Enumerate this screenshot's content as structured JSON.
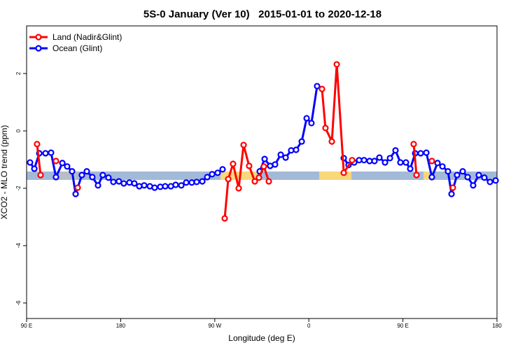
{
  "chart_data": {
    "type": "line",
    "title": "5S-0 January (Ver 10)   2015-01-01 to 2020-12-18",
    "x_label": "Longitude (deg E)",
    "y_label": "XCO2 - MLO trend (ppm)",
    "xlim": [
      90,
      540
    ],
    "ylim": [
      -6.54,
      3.66
    ],
    "xticks": [
      {
        "value": 90,
        "label": "90 E"
      },
      {
        "value": 180,
        "label": "180"
      },
      {
        "value": 270,
        "label": "90 W"
      },
      {
        "value": 360,
        "label": "0"
      },
      {
        "value": 450,
        "label": "90 E"
      },
      {
        "value": 540,
        "label": "180"
      }
    ],
    "yticks": [
      -6,
      -4,
      -2,
      0,
      2
    ],
    "legend": "top-left",
    "series": [
      {
        "name": "Ocean (Glint)",
        "color": "#0000ff",
        "x": [
          93.3,
          97.4,
          102.1,
          108.1,
          113.4,
          118.1,
          124.2,
          128.8,
          133.5,
          136.9,
          142.9,
          147.6,
          152.9,
          158.3,
          162.9,
          168.3,
          173.0,
          178.3,
          183.0,
          188.4,
          193.1,
          197.8,
          202.5,
          207.9,
          212.5,
          217.9,
          222.6,
          228.0,
          232.6,
          238.0,
          242.7,
          248.0,
          252.7,
          258.1,
          262.8,
          267.5,
          272.8,
          277.5,
          null,
          313.0,
          317.7,
          323.0,
          327.7,
          333.1,
          337.8,
          343.1,
          347.8,
          353.2,
          357.9,
          362.5,
          367.9,
          null,
          393.4,
          398.0,
          403.4,
          408.1,
          412.8,
          418.1,
          422.8,
          427.5,
          432.9,
          437.6,
          442.9,
          447.6,
          452.9,
          457.0,
          461.7,
          467.0,
          472.4,
          477.7,
          483.1,
          487.8,
          493.1,
          496.5,
          501.8,
          507.2,
          511.9,
          517.2,
          522.6,
          527.9,
          533.3,
          538.7
        ],
        "values": [
          -1.1,
          -1.32,
          -0.78,
          -0.78,
          -0.76,
          -1.61,
          -1.12,
          -1.24,
          -1.41,
          -2.2,
          -1.54,
          -1.41,
          -1.61,
          -1.9,
          -1.54,
          -1.63,
          -1.78,
          -1.76,
          -1.83,
          -1.8,
          -1.83,
          -1.93,
          -1.9,
          -1.93,
          -1.98,
          -1.95,
          -1.93,
          -1.93,
          -1.88,
          -1.9,
          -1.8,
          -1.8,
          -1.78,
          -1.76,
          -1.61,
          -1.51,
          -1.46,
          -1.34,
          null,
          -1.41,
          -0.98,
          -1.22,
          -1.17,
          -0.83,
          -0.93,
          -0.68,
          -0.66,
          -0.37,
          0.44,
          0.27,
          1.56,
          null,
          -0.95,
          -1.19,
          -1.1,
          -1.02,
          -1.02,
          -1.05,
          -1.05,
          -0.93,
          -1.1,
          -0.95,
          -0.68,
          -1.1,
          -1.1,
          -1.32,
          -0.78,
          -0.78,
          -0.76,
          -1.61,
          -1.12,
          -1.24,
          -1.41,
          -2.2,
          -1.54,
          -1.41,
          -1.61,
          -1.9,
          -1.54,
          -1.63,
          -1.78,
          -1.73
        ]
      },
      {
        "name": "Land (Nadir&Glint)",
        "color": "#ff0000",
        "x": [
          100.0,
          103.4,
          null,
          118.1,
          null,
          138.9,
          null,
          279.5,
          282.9,
          287.5,
          292.9,
          297.6,
          302.9,
          308.3,
          312.3,
          317.0,
          321.7,
          null,
          372.6,
          375.9,
          382.0,
          386.7,
          393.4,
          401.4,
          null,
          460.3,
          463.0,
          null,
          477.7,
          null,
          497.8
        ],
        "values": [
          -0.46,
          -1.54,
          null,
          -1.05,
          null,
          -1.98,
          null,
          -3.05,
          -1.68,
          -1.15,
          -2.0,
          -0.49,
          -1.22,
          -1.76,
          -1.63,
          -1.24,
          -1.76,
          null,
          1.46,
          0.1,
          -0.37,
          2.32,
          -1.46,
          -1.02,
          null,
          -0.46,
          -1.54,
          null,
          -1.05,
          null,
          -1.98
        ]
      }
    ]
  }
}
